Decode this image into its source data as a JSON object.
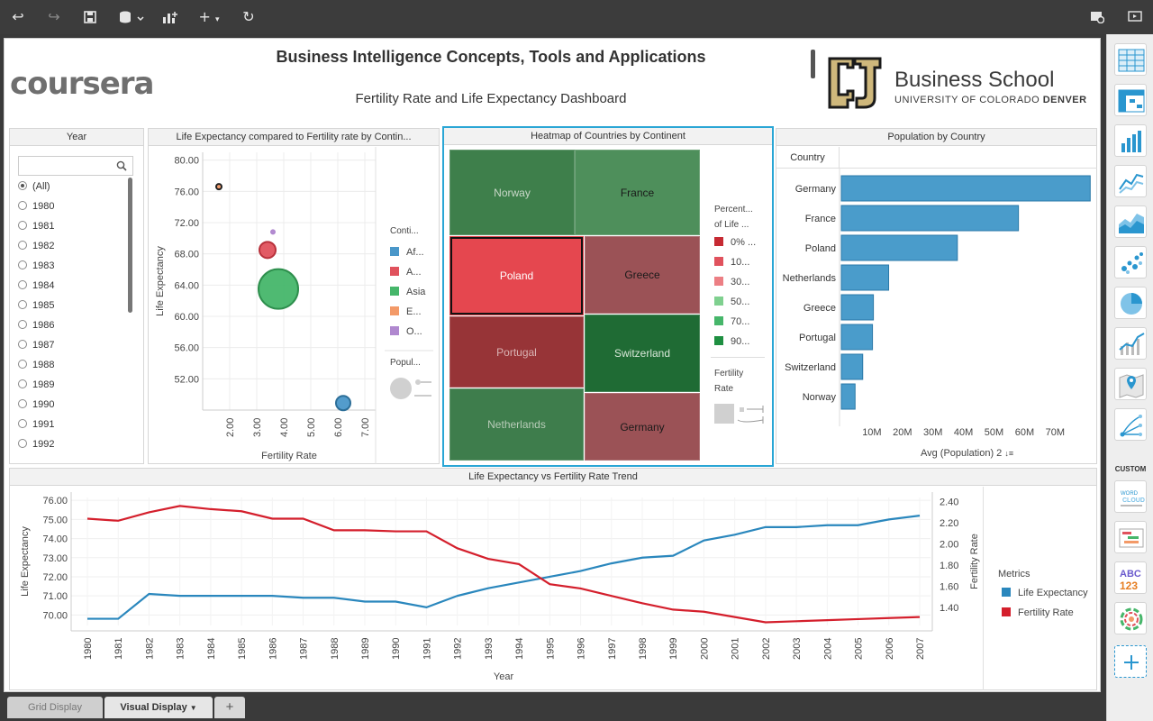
{
  "toolbar": {
    "icons": [
      "undo-icon",
      "redo-icon",
      "save-icon",
      "add-data-icon",
      "add-chart-icon",
      "add-icon",
      "refresh-icon",
      "settings-icon",
      "present-icon"
    ]
  },
  "header": {
    "title": "Business Intelligence Concepts, Tools and Applications",
    "subtitle": "Fertility Rate and Life Expectancy Dashboard",
    "left_logo": "coursera",
    "right_logo_name": "Business School",
    "right_logo_univ": "UNIVERSITY OF COLORADO",
    "right_logo_univ_bold": "DENVER"
  },
  "year_filter": {
    "title": "Year",
    "search_placeholder": "",
    "items": [
      "(All)",
      "1980",
      "1981",
      "1982",
      "1983",
      "1984",
      "1985",
      "1986",
      "1987",
      "1988",
      "1989",
      "1990",
      "1991",
      "1992"
    ],
    "selected": "(All)"
  },
  "bubble_panel": {
    "title": "Life Expectancy compared to Fertility rate by Contin...",
    "legend_title": "Conti...",
    "legend_items": [
      {
        "label": "Af...",
        "color": "#4a97c9"
      },
      {
        "label": "A...",
        "color": "#e0525d"
      },
      {
        "label": "Asia",
        "color": "#46b66a"
      },
      {
        "label": "E...",
        "color": "#f39a68"
      },
      {
        "label": "O...",
        "color": "#b088cf"
      }
    ],
    "size_legend_title": "Popul..."
  },
  "heatmap_panel": {
    "title": "Heatmap of Countries by Continent",
    "tiles": [
      {
        "label": "Norway",
        "color": "#3e7f4b",
        "text_color": "#c9d8c9"
      },
      {
        "label": "France",
        "color": "#4e8f5b",
        "text_color": "#1a1a1a"
      },
      {
        "label": "Poland",
        "color": "#e5474f",
        "text_color": "#ffffff"
      },
      {
        "label": "Greece",
        "color": "#9b5256",
        "text_color": "#1a1a1a"
      },
      {
        "label": "Portugal",
        "color": "#973437",
        "text_color": "#d9b3b3"
      },
      {
        "label": "Switzerland",
        "color": "#1f6b34",
        "text_color": "#d9e8d9"
      },
      {
        "label": "Netherlands",
        "color": "#3e7d4c",
        "text_color": "#b8ccb8"
      },
      {
        "label": "Germany",
        "color": "#9b5256",
        "text_color": "#1a1a1a"
      }
    ],
    "legend_title_1": "Percent...",
    "legend_title_2": "of Life ...",
    "legend_items": [
      {
        "label": "0% ...",
        "color": "#c62a33"
      },
      {
        "label": "10...",
        "color": "#e0525d"
      },
      {
        "label": "30...",
        "color": "#ec7f84"
      },
      {
        "label": "50...",
        "color": "#7fd08f"
      },
      {
        "label": "70...",
        "color": "#46b66a"
      },
      {
        "label": "90...",
        "color": "#1e8f41"
      }
    ],
    "size_legend_title_1": "Fertility",
    "size_legend_title_2": "Rate"
  },
  "population_panel": {
    "title": "Population by Country",
    "column_header": "Country",
    "x_axis_label": "Avg (Population) 2",
    "sort_icon": "sort-icon"
  },
  "trend_panel": {
    "title": "Life Expectancy vs Fertility Rate Trend",
    "legend_title": "Metrics",
    "legend_items": [
      {
        "label": "Life Expectancy",
        "color": "#2a87bd"
      },
      {
        "label": "Fertility Rate",
        "color": "#d41f2c"
      }
    ]
  },
  "right_panel": {
    "custom_label": "CUSTOM",
    "abc_text": "ABC",
    "num_text": "123",
    "wordcloud_text_1": "WORD",
    "wordcloud_text_2": "CLOUD"
  },
  "tabs": {
    "items": [
      "Grid Display",
      "Visual Display"
    ],
    "active": "Visual Display",
    "add_label": "+"
  },
  "chart_data": [
    {
      "type": "scatter",
      "title": "Life Expectancy compared to Fertility rate by Contin...",
      "xlabel": "Fertility Rate",
      "ylabel": "Life Expectancy",
      "xlim": [
        1.0,
        7.4
      ],
      "ylim": [
        48.0,
        81.0
      ],
      "x_ticks": [
        "2.00",
        "3.00",
        "4.00",
        "5.00",
        "6.00",
        "7.00"
      ],
      "y_ticks": [
        "52.00",
        "56.00",
        "60.00",
        "64.00",
        "68.00",
        "72.00",
        "76.00",
        "80.00"
      ],
      "points": [
        {
          "series": "Americas",
          "x": 1.6,
          "y": 76.6,
          "r": 3,
          "color": "#f39a68",
          "stroke": "#222"
        },
        {
          "series": "Oceania",
          "x": 3.6,
          "y": 70.8,
          "r": 2,
          "color": "#b088cf",
          "stroke": "#b088cf"
        },
        {
          "series": "Americas",
          "x": 3.4,
          "y": 68.5,
          "r": 9,
          "color": "#e0525d",
          "stroke": "#b8323c"
        },
        {
          "series": "Asia",
          "x": 3.8,
          "y": 63.5,
          "r": 22,
          "color": "#46b66a",
          "stroke": "#2e8f4d"
        },
        {
          "series": "Africa",
          "x": 6.2,
          "y": 48.9,
          "r": 8,
          "color": "#4a97c9",
          "stroke": "#2c6e98"
        }
      ],
      "grid": true
    },
    {
      "type": "bar",
      "title": "Population by Country",
      "orientation": "horizontal",
      "categories": [
        "Germany",
        "France",
        "Poland",
        "Netherlands",
        "Greece",
        "Portugal",
        "Switzerland",
        "Norway"
      ],
      "values": [
        81.5,
        58.0,
        38.0,
        15.5,
        10.5,
        10.2,
        7.0,
        4.5
      ],
      "unit": "M",
      "x_ticks": [
        "10M",
        "20M",
        "30M",
        "40M",
        "50M",
        "60M",
        "70M"
      ],
      "xlim": [
        0,
        82
      ],
      "xlabel": "Avg (Population) 2",
      "color": "#4a9ccb"
    },
    {
      "type": "line",
      "title": "Life Expectancy vs Fertility Rate Trend",
      "xlabel": "Year",
      "ylabel": "Life Expectancy",
      "y2label": "Fertility Rate",
      "x": [
        "1980",
        "1981",
        "1982",
        "1983",
        "1984",
        "1985",
        "1986",
        "1987",
        "1988",
        "1989",
        "1990",
        "1991",
        "1992",
        "1993",
        "1994",
        "1995",
        "1996",
        "1997",
        "1998",
        "1999",
        "2000",
        "2001",
        "2002",
        "2003",
        "2004",
        "2005",
        "2006",
        "2007"
      ],
      "ylim": [
        69.45,
        76.15
      ],
      "y2lim": [
        1.23,
        2.44
      ],
      "y_ticks": [
        "70.00",
        "71.00",
        "72.00",
        "73.00",
        "74.00",
        "75.00",
        "76.00"
      ],
      "y2_ticks": [
        "1.40",
        "1.60",
        "1.80",
        "2.00",
        "2.20",
        "2.40"
      ],
      "series": [
        {
          "name": "Life Expectancy",
          "axis": "left",
          "color": "#2a87bd",
          "values": [
            69.8,
            69.8,
            71.1,
            71.0,
            71.0,
            71.0,
            71.0,
            70.9,
            70.9,
            70.7,
            70.7,
            70.4,
            71.0,
            71.4,
            71.7,
            72.0,
            72.3,
            72.7,
            73.0,
            73.1,
            73.9,
            74.2,
            74.6,
            74.6,
            74.7,
            74.7,
            75.0,
            75.2
          ]
        },
        {
          "name": "Fertility Rate",
          "axis": "right",
          "color": "#d41f2c",
          "values": [
            2.24,
            2.22,
            2.3,
            2.36,
            2.33,
            2.31,
            2.24,
            2.24,
            2.13,
            2.13,
            2.12,
            2.12,
            1.96,
            1.86,
            1.81,
            1.62,
            1.58,
            1.51,
            1.44,
            1.38,
            1.36,
            1.31,
            1.26,
            1.27,
            1.28,
            1.29,
            1.3,
            1.31
          ]
        }
      ],
      "grid": true
    }
  ]
}
